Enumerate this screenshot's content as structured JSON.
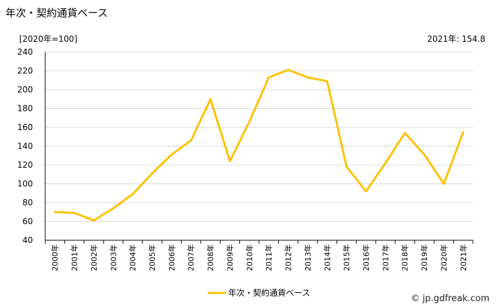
{
  "title": "年次・契約通貨ベース",
  "unit_label": "[2020年=100]",
  "latest_label": "2021年: 154.8",
  "credit": "jp.gdfreak.com",
  "credit_icon": "copyright-icon",
  "colors": {
    "series": "#FFC000",
    "grid": "#D9D9D9",
    "axis": "#000000"
  },
  "chart_data": {
    "type": "line",
    "title": "年次・契約通貨ベース",
    "ylabel": "[2020年=100]",
    "ylim": [
      40,
      240
    ],
    "yticks": [
      40,
      60,
      80,
      100,
      120,
      140,
      160,
      180,
      200,
      220,
      240
    ],
    "grid": "horizontal",
    "legend_position": "bottom-center",
    "categories": [
      "2000年",
      "2001年",
      "2002年",
      "2003年",
      "2004年",
      "2005年",
      "2006年",
      "2007年",
      "2008年",
      "2009年",
      "2010年",
      "2011年",
      "2012年",
      "2013年",
      "2014年",
      "2015年",
      "2016年",
      "2017年",
      "2018年",
      "2019年",
      "2020年",
      "2021年"
    ],
    "series": [
      {
        "name": "年次・契約通貨ベース",
        "values": [
          70,
          69,
          61,
          74,
          89,
          111,
          131,
          146,
          190,
          124,
          166,
          213,
          221,
          213,
          209,
          118,
          92,
          122,
          154,
          131,
          100,
          154.8
        ]
      }
    ]
  }
}
